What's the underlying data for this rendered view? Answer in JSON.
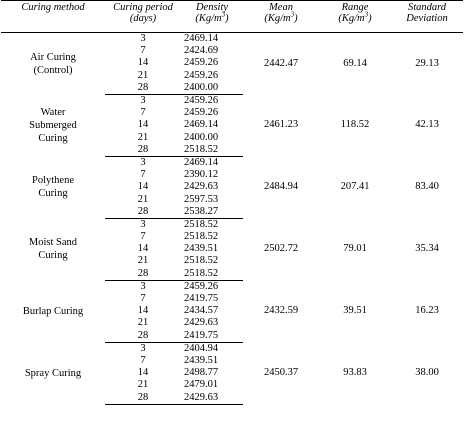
{
  "headers": {
    "method": "Curing method",
    "period_line1": "Curing period",
    "period_line2": "(days)",
    "density_line1": "Density",
    "density_unit": "(Kg/m",
    "density_exp": "3",
    "density_close": ")",
    "mean_line1": "Mean",
    "mean_unit": "(Kg/m",
    "mean_exp": "3",
    "mean_close": ")",
    "range_line1": "Range",
    "range_unit": "(Kg/m",
    "range_exp": "3",
    "range_close": ")",
    "std_line1": "Standard",
    "std_line2": "Deviation"
  },
  "groups": [
    {
      "method_line1": "Air Curing",
      "method_line2": "(Control)",
      "rows": [
        {
          "day": "3",
          "density": "2469.14"
        },
        {
          "day": "7",
          "density": "2424.69"
        },
        {
          "day": "14",
          "density": "2459.26"
        },
        {
          "day": "21",
          "density": "2459.26"
        },
        {
          "day": "28",
          "density": "2400.00"
        }
      ],
      "mean": "2442.47",
      "range": "69.14",
      "std": "29.13"
    },
    {
      "method_line1": "Water",
      "method_line2": "Submerged",
      "method_line3": "Curing",
      "rows": [
        {
          "day": "3",
          "density": "2459.26"
        },
        {
          "day": "7",
          "density": "2459.26"
        },
        {
          "day": "14",
          "density": "2469.14"
        },
        {
          "day": "21",
          "density": "2400.00"
        },
        {
          "day": "28",
          "density": "2518.52"
        }
      ],
      "mean": "2461.23",
      "range": "118.52",
      "std": "42.13"
    },
    {
      "method_line1": "Polythene",
      "method_line2": "Curing",
      "rows": [
        {
          "day": "3",
          "density": "2469.14"
        },
        {
          "day": "7",
          "density": "2390.12"
        },
        {
          "day": "14",
          "density": "2429.63"
        },
        {
          "day": "21",
          "density": "2597.53"
        },
        {
          "day": "28",
          "density": "2538.27"
        }
      ],
      "mean": "2484.94",
      "range": "207.41",
      "std": "83.40"
    },
    {
      "method_line1": "Moist Sand",
      "method_line2": "Curing",
      "rows": [
        {
          "day": "3",
          "density": "2518.52"
        },
        {
          "day": "7",
          "density": "2518.52"
        },
        {
          "day": "14",
          "density": "2439.51"
        },
        {
          "day": "21",
          "density": "2518.52"
        },
        {
          "day": "28",
          "density": "2518.52"
        }
      ],
      "mean": "2502.72",
      "range": "79.01",
      "std": "35.34"
    },
    {
      "method_line1": "Burlap Curing",
      "rows": [
        {
          "day": "3",
          "density": "2459.26"
        },
        {
          "day": "7",
          "density": "2419.75"
        },
        {
          "day": "14",
          "density": "2434.57"
        },
        {
          "day": "21",
          "density": "2429.63"
        },
        {
          "day": "28",
          "density": "2419.75"
        }
      ],
      "mean": "2432.59",
      "range": "39.51",
      "std": "16.23"
    },
    {
      "method_line1": "Spray Curing",
      "rows": [
        {
          "day": "3",
          "density": "2404.94"
        },
        {
          "day": "7",
          "density": "2439.51"
        },
        {
          "day": "14",
          "density": "2498.77"
        },
        {
          "day": "21",
          "density": "2479.01"
        },
        {
          "day": "28",
          "density": "2429.63"
        }
      ],
      "mean": "2450.37",
      "range": "93.83",
      "std": "38.00"
    }
  ]
}
